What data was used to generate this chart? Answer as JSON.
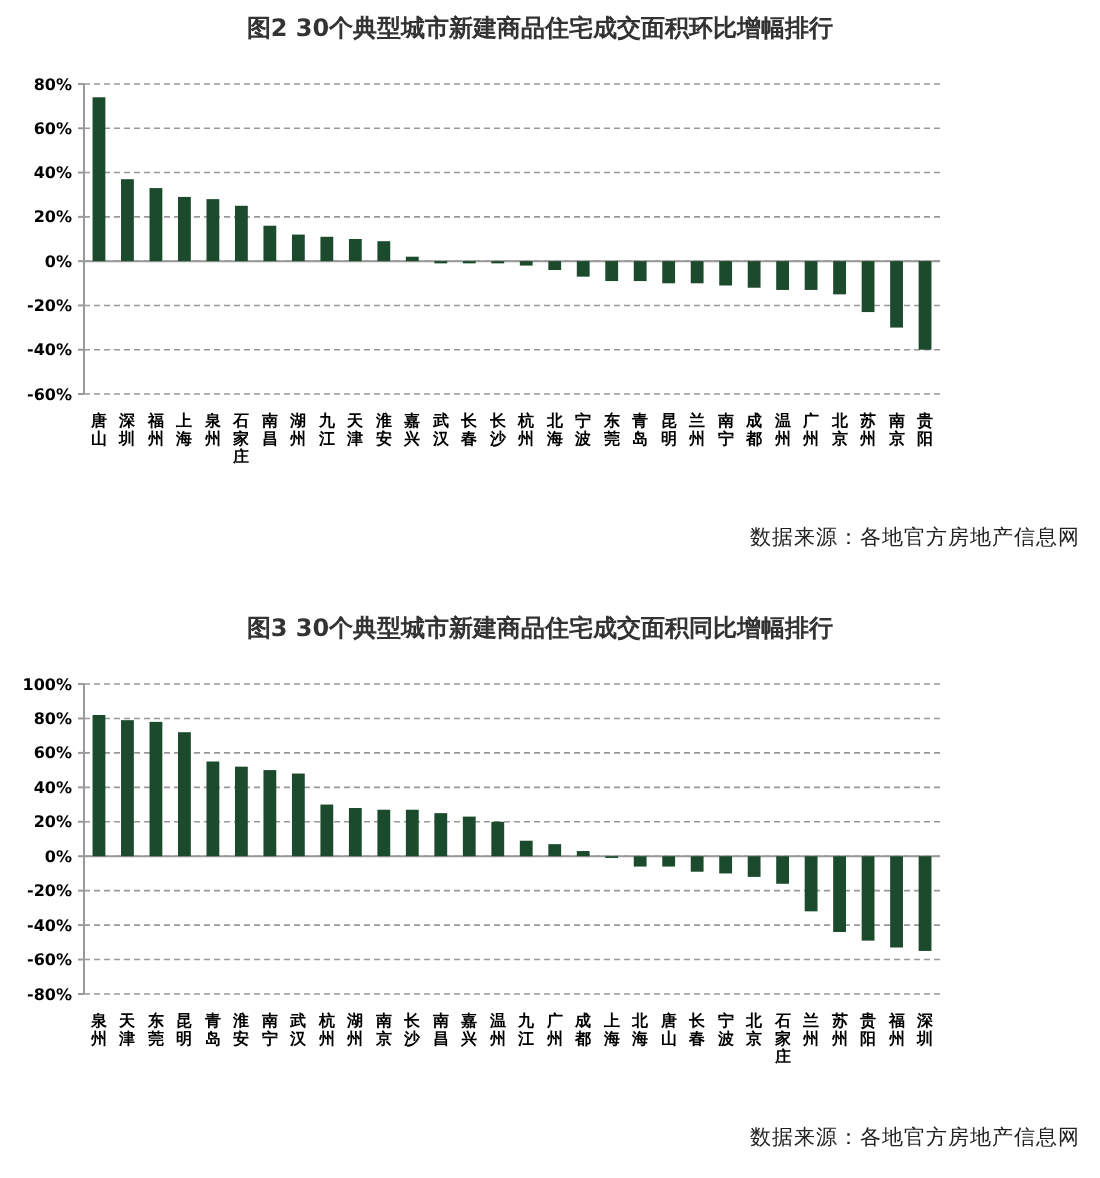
{
  "chart_data": [
    {
      "type": "bar",
      "title": "图2  30个典型城市新建商品住宅成交面积环比增幅排行",
      "categories": [
        "唐山",
        "深圳",
        "福州",
        "上海",
        "泉州",
        "石家庄",
        "南昌",
        "湖州",
        "九江",
        "天津",
        "淮安",
        "嘉兴",
        "武汉",
        "长春",
        "长沙",
        "杭州",
        "北海",
        "宁波",
        "东莞",
        "青岛",
        "昆明",
        "兰州",
        "南宁",
        "成都",
        "温州",
        "广州",
        "北京",
        "苏州",
        "南京",
        "贵阳"
      ],
      "series": [
        {
          "color": "#1b4a2c",
          "values": [
            74,
            37,
            33,
            29,
            28,
            25,
            16,
            12,
            11,
            10,
            9,
            2,
            -1,
            -1,
            -1,
            -2,
            -4,
            -7,
            -9,
            -9,
            -10,
            -10,
            -11,
            -12,
            -13,
            -13,
            -15,
            -23,
            -30,
            -40
          ]
        }
      ],
      "ylim": [
        -60,
        80
      ],
      "yticks": [
        {
          "value": -60,
          "label": "-60%"
        },
        {
          "value": -40,
          "label": "-40%"
        },
        {
          "value": -20,
          "label": "-20%"
        },
        {
          "value": 0,
          "label": "0%"
        },
        {
          "value": 20,
          "label": "20%"
        },
        {
          "value": 40,
          "label": "40%"
        },
        {
          "value": 60,
          "label": "60%"
        },
        {
          "value": 80,
          "label": "80%"
        }
      ],
      "grid": "y",
      "annotations": [
        "数据来源：各地官方房地产信息网"
      ]
    },
    {
      "type": "bar",
      "title": "图3  30个典型城市新建商品住宅成交面积同比增幅排行",
      "categories": [
        "泉州",
        "天津",
        "东莞",
        "昆明",
        "青岛",
        "淮安",
        "南宁",
        "武汉",
        "杭州",
        "湖州",
        "南京",
        "长沙",
        "南昌",
        "嘉兴",
        "温州",
        "九江",
        "广州",
        "成都",
        "上海",
        "北海",
        "唐山",
        "长春",
        "宁波",
        "北京",
        "石家庄",
        "兰州",
        "苏州",
        "贵阳",
        "福州",
        "深圳"
      ],
      "series": [
        {
          "color": "#1b4a2c",
          "values": [
            82,
            79,
            78,
            72,
            55,
            52,
            50,
            48,
            30,
            28,
            27,
            27,
            25,
            23,
            20,
            9,
            7,
            3,
            -1,
            -6,
            -6,
            -9,
            -10,
            -12,
            -16,
            -32,
            -44,
            -49,
            -53,
            -55
          ]
        }
      ],
      "ylim": [
        -80,
        100
      ],
      "yticks": [
        {
          "value": -80,
          "label": "-80%"
        },
        {
          "value": -60,
          "label": "-60%"
        },
        {
          "value": -40,
          "label": "-40%"
        },
        {
          "value": -20,
          "label": "-20%"
        },
        {
          "value": 0,
          "label": "0%"
        },
        {
          "value": 20,
          "label": "20%"
        },
        {
          "value": 40,
          "label": "40%"
        },
        {
          "value": 60,
          "label": "60%"
        },
        {
          "value": 80,
          "label": "80%"
        },
        {
          "value": 100,
          "label": "100%"
        }
      ],
      "grid": "y",
      "annotations": [
        "数据来源：各地官方房地产信息网"
      ]
    }
  ]
}
